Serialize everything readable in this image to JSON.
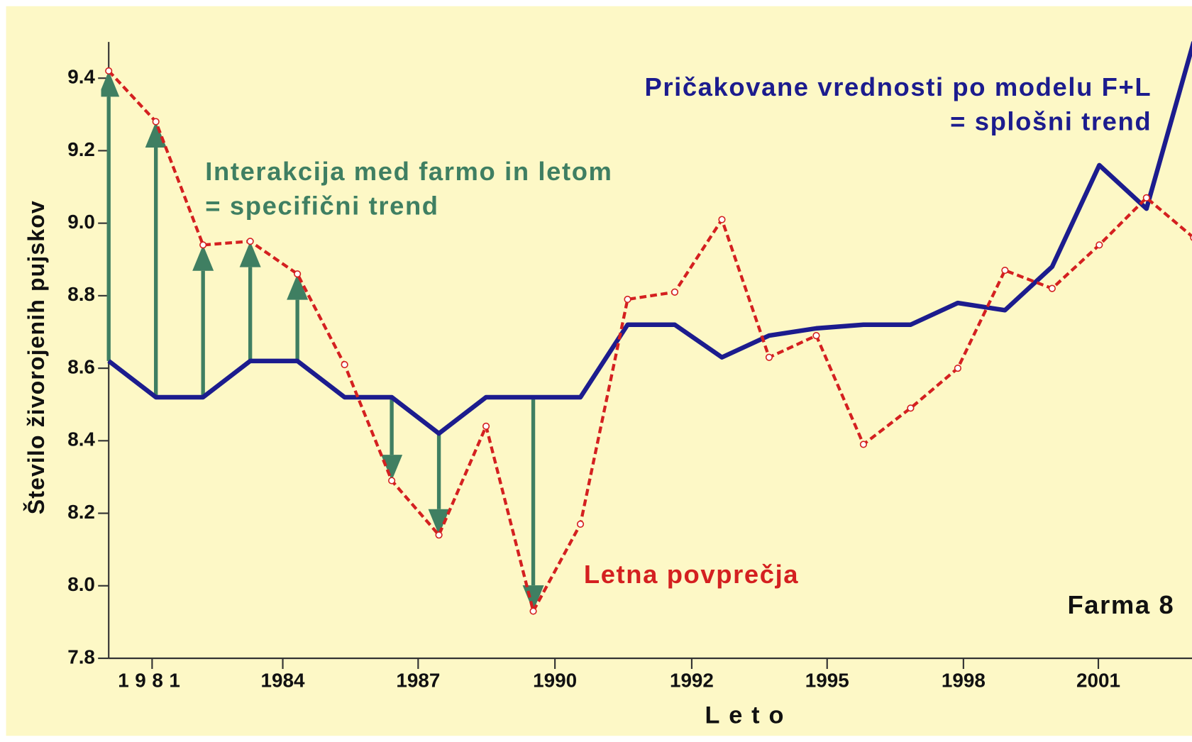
{
  "chart_data": {
    "type": "line",
    "x_label": "Leto",
    "y_label": "Število živorojenih pujskov",
    "x": [
      1980,
      1981,
      1982,
      1983,
      1984,
      1985,
      1986,
      1987,
      1988,
      1989,
      1990,
      1991,
      1992,
      1993,
      1994,
      1995,
      1996,
      1997,
      1998,
      1999,
      2000,
      2001,
      2002,
      2003
    ],
    "series": [
      {
        "name": "Pričakovane vrednosti po modelu F+L",
        "color": "#1c1c8e",
        "style": "solid",
        "values": [
          8.62,
          8.52,
          8.52,
          8.62,
          8.62,
          8.52,
          8.52,
          8.42,
          8.52,
          8.52,
          8.52,
          8.72,
          8.72,
          8.63,
          8.69,
          8.71,
          8.72,
          8.72,
          8.78,
          8.76,
          8.88,
          9.16,
          9.04,
          9.5
        ]
      },
      {
        "name": "Letna povprečja",
        "color": "#d42020",
        "style": "dashed",
        "values": [
          9.42,
          9.28,
          8.94,
          8.95,
          8.86,
          8.61,
          8.29,
          8.14,
          8.44,
          7.93,
          8.17,
          8.79,
          8.81,
          9.01,
          8.63,
          8.69,
          8.39,
          8.49,
          8.6,
          8.87,
          8.82,
          8.94,
          9.07,
          8.96
        ]
      }
    ],
    "interaction": {
      "color": "#3f7f62",
      "indices": [
        0,
        1,
        2,
        3,
        4,
        6,
        7,
        9
      ]
    },
    "annotations": [
      {
        "lines": [
          "Pričakovane vrednosti po modelu F+L",
          "= splošni trend"
        ],
        "color": "#1c1c8e"
      },
      {
        "lines": [
          "Interakcija med farmo in letom",
          "= specifični trend"
        ],
        "color": "#3f7f62"
      },
      {
        "lines": [
          "Letna povprečja"
        ],
        "color": "#d42020"
      },
      {
        "lines": [
          "Farma 8"
        ],
        "color": "#111111"
      }
    ],
    "xlim": [
      1980,
      2004
    ],
    "ylim": [
      7.8,
      9.5
    ],
    "xticks": [
      {
        "value": 1980.92,
        "label": "1981"
      },
      {
        "value": 1983.69,
        "label": "1984"
      },
      {
        "value": 1986.56,
        "label": "1987"
      },
      {
        "value": 1989.46,
        "label": "1990"
      },
      {
        "value": 1992.36,
        "label": "1992"
      },
      {
        "value": 1995.23,
        "label": "1995"
      },
      {
        "value": 1998.12,
        "label": "1998"
      },
      {
        "value": 2000.98,
        "label": "2001"
      }
    ],
    "yticks": [
      7.8,
      {
        "value": 8.0,
        "label": "8.0"
      },
      8.2,
      8.4,
      8.6,
      8.8,
      {
        "value": 9.0,
        "label": "9.0"
      },
      9.2,
      9.4
    ],
    "background": "#fdf8c6"
  }
}
